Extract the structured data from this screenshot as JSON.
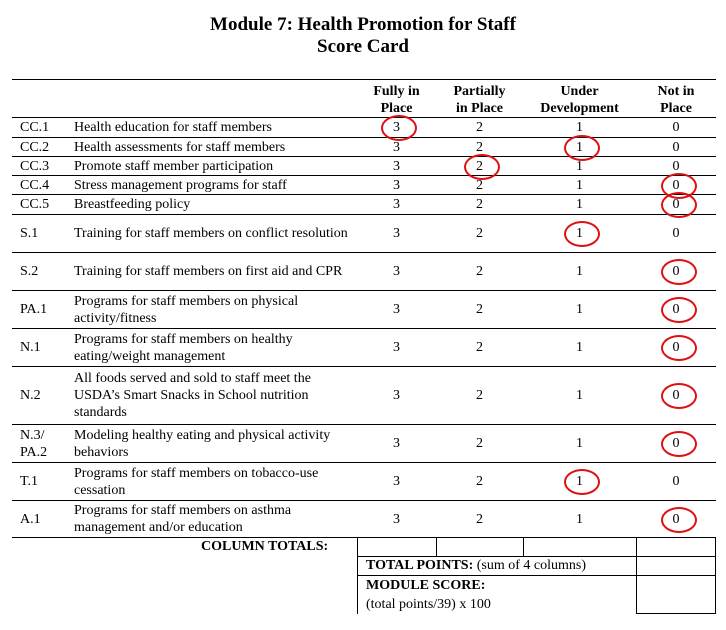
{
  "title": {
    "line1": "Module 7: Health Promotion for Staff",
    "line2": "Score Card"
  },
  "headers": [
    "Fully in Place",
    "Partially in Place",
    "Under Development",
    "Not in Place"
  ],
  "header_lines": [
    [
      "Fully in",
      "Place"
    ],
    [
      "Partially",
      "in Place"
    ],
    [
      "Under",
      "Development"
    ],
    [
      "Not in",
      "Place"
    ]
  ],
  "values": [
    "3",
    "2",
    "1",
    "0"
  ],
  "circle_color": "#d11111",
  "rows": [
    {
      "code": "CC.1",
      "item": "Health education for staff members",
      "selected": 0
    },
    {
      "code": "CC.2",
      "item": "Health assessments  for staff members",
      "selected": 2
    },
    {
      "code": "CC.3",
      "item": "Promote staff member participation",
      "selected": 1
    },
    {
      "code": "CC.4",
      "item": "Stress management  programs for staff",
      "selected": 3
    },
    {
      "code": "CC.5",
      "item": "Breastfeeding policy",
      "selected": 3
    },
    {
      "code": "S.1",
      "item": "Training  for staff members on conflict resolution",
      "selected": 2
    },
    {
      "code": "S.2",
      "item": "Training  for staff members on first aid and CPR",
      "selected": 3
    },
    {
      "code": "PA.1",
      "item": "Programs for staff members on physical activity/fitness",
      "selected": 3
    },
    {
      "code": "N.1",
      "item": "Programs for staff members on healthy eating/weight management",
      "selected": 3
    },
    {
      "code": "N.2",
      "item": "All foods served and sold to staff meet the USDA’s Smart Snacks in School nutrition standards",
      "selected": 3
    },
    {
      "code": "N.3/ PA.2",
      "item": "Modeling healthy eating and physical activity behaviors",
      "selected": 3
    },
    {
      "code": "T.1",
      "item": "Programs for staff members on tobacco-use cessation",
      "selected": 2
    },
    {
      "code": "A.1",
      "item": "Programs for staff members on asthma management and/or education",
      "selected": 3
    }
  ],
  "footer": {
    "column_totals": "COLUMN TOTALS:",
    "total_points_label": "TOTAL POINTS:",
    "total_points_note": " (sum of 4 columns)",
    "module_score_label": "MODULE SCORE:",
    "module_score_formula": "(total points/39) x 100"
  }
}
